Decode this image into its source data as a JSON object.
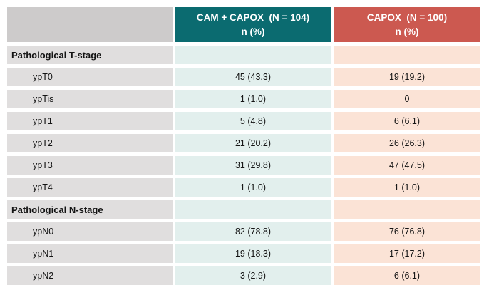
{
  "chart_data": {
    "type": "table",
    "title": "",
    "legend": null,
    "column_headers": [
      {
        "label": "",
        "sub": ""
      },
      {
        "label": "CAM + CAPOX  (N = 104)",
        "sub": "n (%)"
      },
      {
        "label": "CAPOX  (N = 100)",
        "sub": "n (%)"
      }
    ],
    "rows": [
      {
        "type": "section",
        "label": "Pathological T-stage",
        "cam_capox": "",
        "capox": ""
      },
      {
        "type": "data",
        "label": "ypT0",
        "cam_capox": "45 (43.3)",
        "capox": "19 (19.2)"
      },
      {
        "type": "data",
        "label": "ypTis",
        "cam_capox": "1 (1.0)",
        "capox": "0"
      },
      {
        "type": "data",
        "label": "ypT1",
        "cam_capox": "5 (4.8)",
        "capox": "6 (6.1)"
      },
      {
        "type": "data",
        "label": "ypT2",
        "cam_capox": "21 (20.2)",
        "capox": "26 (26.3)"
      },
      {
        "type": "data",
        "label": "ypT3",
        "cam_capox": "31 (29.8)",
        "capox": "47 (47.5)"
      },
      {
        "type": "data",
        "label": "ypT4",
        "cam_capox": "1 (1.0)",
        "capox": "1 (1.0)"
      },
      {
        "type": "section",
        "label": "Pathological N-stage",
        "cam_capox": "",
        "capox": ""
      },
      {
        "type": "data",
        "label": "ypN0",
        "cam_capox": "82 (78.8)",
        "capox": "76 (76.8)"
      },
      {
        "type": "data",
        "label": "ypN1",
        "cam_capox": "19 (18.3)",
        "capox": "17 (17.2)"
      },
      {
        "type": "data",
        "label": "ypN2",
        "cam_capox": "3 (2.9)",
        "capox": "6 (6.1)"
      }
    ],
    "colors": {
      "header_cam_capox_bg": "#0B6B70",
      "header_capox_bg": "#CC5950",
      "header_text": "#FFFFFF",
      "header_label_bg": "#CDCBCB",
      "label_column_bg": "#E0DEDE",
      "cam_capox_column_bg": "#E2EFED",
      "capox_column_bg": "#FBE3D6",
      "body_text": "#141414",
      "page_bg": "#FFFFFF"
    }
  }
}
